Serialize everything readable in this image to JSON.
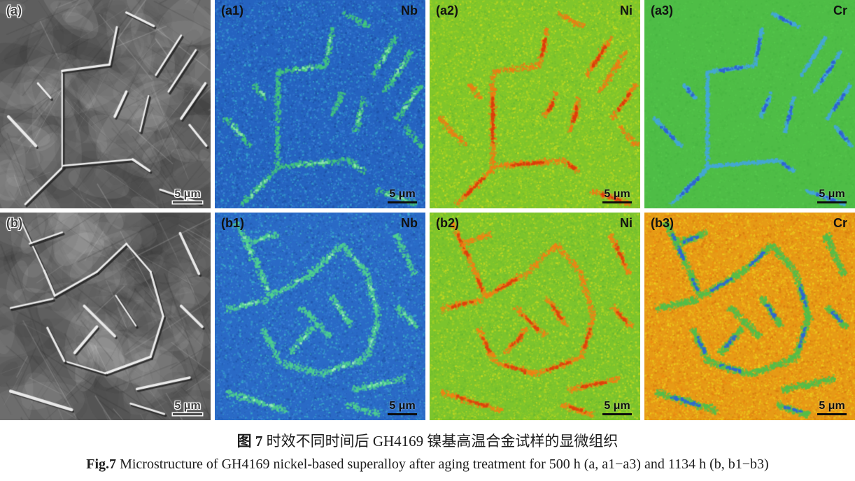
{
  "figure": {
    "panels": [
      {
        "label": "(a)",
        "element": "",
        "scale": "5 μm",
        "row": "a",
        "type": "sem",
        "colors": {
          "base": "#5e5e5e",
          "dark": "#262626",
          "bright": "#f5f5f5"
        }
      },
      {
        "label": "(a1)",
        "element": "Nb",
        "scale": "5 μm",
        "row": "a",
        "type": "eds",
        "colors": {
          "base": "#2563c0",
          "noise": [
            "#3e84d8",
            "#1c4fa4",
            "#37a8cf",
            "#2e74cc"
          ],
          "streak": "#43c97c",
          "core": "#8fe8ae"
        }
      },
      {
        "label": "(a2)",
        "element": "Ni",
        "scale": "5 μm",
        "row": "a",
        "type": "eds",
        "colors": {
          "base": "#80c62b",
          "noise": [
            "#a6d426",
            "#cfdd1e",
            "#6ab930",
            "#93cf24"
          ],
          "streak": "#ef7c14",
          "core": "#dd3c0a"
        }
      },
      {
        "label": "(a3)",
        "element": "Cr",
        "scale": "5 μm",
        "row": "a",
        "type": "eds",
        "colors": {
          "base": "#4ebd46",
          "noise": [
            "#47b542",
            "#57c94e",
            "#52c44a"
          ],
          "streak": "#44a8d6",
          "core": "#2e62d2"
        }
      },
      {
        "label": "(b)",
        "element": "",
        "scale": "5 μm",
        "row": "b",
        "type": "sem",
        "colors": {
          "base": "#5a5a5a",
          "dark": "#242424",
          "bright": "#f2f2f2"
        }
      },
      {
        "label": "(b1)",
        "element": "Nb",
        "scale": "5 μm",
        "row": "b",
        "type": "eds",
        "colors": {
          "base": "#2a6ac6",
          "noise": [
            "#3f86da",
            "#2055aa",
            "#3cb4ca",
            "#2e78ce"
          ],
          "streak": "#4fd190",
          "core": "#97ecba"
        }
      },
      {
        "label": "(b2)",
        "element": "Ni",
        "scale": "5 μm",
        "row": "b",
        "type": "eds",
        "colors": {
          "base": "#7cc42d",
          "noise": [
            "#a4d228",
            "#ccdb20",
            "#68b830",
            "#90cd26"
          ],
          "streak": "#f08214",
          "core": "#de420c"
        }
      },
      {
        "label": "(b3)",
        "element": "Cr",
        "scale": "5 μm",
        "row": "b",
        "type": "eds",
        "colors": {
          "base": "#e69b16",
          "noise": [
            "#f2bc1a",
            "#d87a10",
            "#ecd31f",
            "#ef8c12"
          ],
          "streak": "#52bf4a",
          "core": "#2d68d2"
        }
      }
    ]
  },
  "caption": {
    "cn_prefix": "图 7",
    "cn_text": " 时效不同时间后 GH4169 镍基高温合金试样的显微组织",
    "en_prefix": "Fig.7",
    "en_text": " Microstructure of GH4169 nickel-based superalloy after aging treatment for 500 h (a, a1−a3) and 1134 h (b, b1−b3)"
  }
}
